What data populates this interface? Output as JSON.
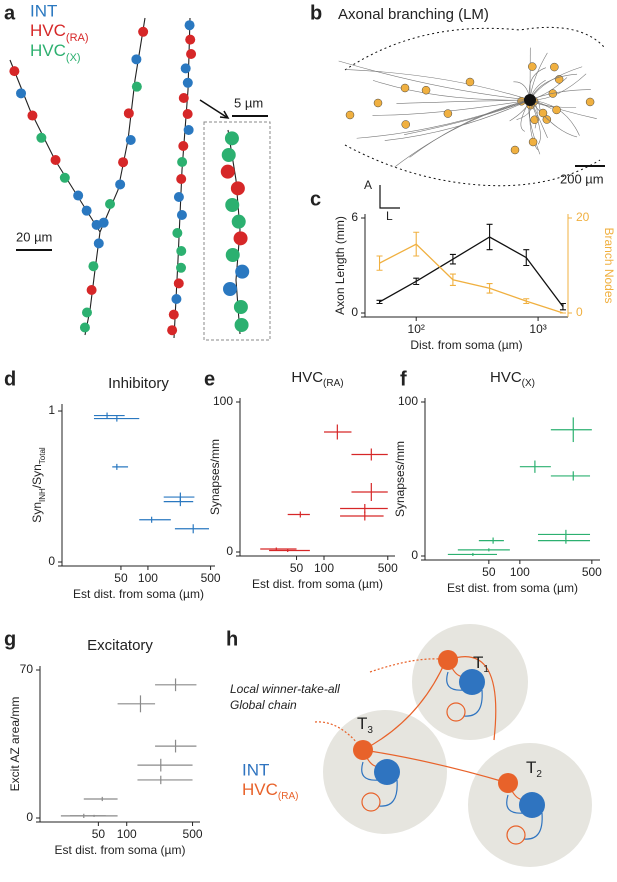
{
  "panels": {
    "a": {
      "label": "a",
      "legend": [
        "INT",
        "HVC",
        "(RA)",
        "HVC",
        "(X)"
      ],
      "scale1": "20 µm",
      "scale2": "5 µm"
    },
    "b": {
      "label": "b",
      "title": "Axonal branching (LM)",
      "scale": "200 µm",
      "axis_a": "A",
      "axis_l": "L"
    },
    "c": {
      "label": "c"
    },
    "d": {
      "label": "d"
    },
    "e": {
      "label": "e"
    },
    "f": {
      "label": "f"
    },
    "g": {
      "label": "g"
    },
    "h": {
      "label": "h",
      "line1": "Local winner-take-all",
      "line2": "Global chain",
      "node": "T",
      "nodes": [
        "1",
        "2",
        "3"
      ],
      "legend": [
        "INT",
        "HVC",
        "(RA)"
      ]
    }
  },
  "chart_data": [
    {
      "type": "line",
      "xlabel": "Dist. from soma (µm)",
      "ylabel": "Axon Length (mm)",
      "y2label": "Branch Nodes",
      "xlog": true,
      "xlim": [
        38,
        1760
      ],
      "xticks": [
        {
          "value": 100,
          "label": "10²"
        },
        {
          "value": 1000,
          "label": "10³"
        }
      ],
      "ylim": [
        0,
        6
      ],
      "yticks": [
        0,
        6
      ],
      "y2lim": [
        0,
        20
      ],
      "y2ticks": [
        0,
        20
      ],
      "series": [
        {
          "name": "Axon Length",
          "color": "#111111",
          "x": [
            50,
            100,
            200,
            400,
            800,
            1600
          ],
          "values": [
            0.7,
            2.0,
            3.4,
            4.8,
            3.5,
            0.4
          ],
          "errors": [
            0.1,
            0.2,
            0.3,
            0.8,
            0.5,
            0.2
          ]
        },
        {
          "name": "Branch Nodes",
          "color": "#f0b040",
          "axis": "y2",
          "x": [
            50,
            100,
            200,
            400,
            800,
            1600
          ],
          "values": [
            10.5,
            14.5,
            7,
            5.2,
            2.5,
            0
          ],
          "errors": [
            1.5,
            2.5,
            1.2,
            1,
            0.5,
            0
          ]
        }
      ]
    },
    {
      "type": "scatter",
      "title": "Inhibitory",
      "xlabel": "Est dist. from soma (µm)",
      "ylabel_parts": [
        "Syn",
        "INH",
        "/Syn",
        "Total"
      ],
      "xlog": true,
      "xlim": [
        11,
        560
      ],
      "xticks": [
        50,
        100,
        500
      ],
      "ylim": [
        0,
        1.02
      ],
      "yticks": [
        0,
        1
      ],
      "color": "#2a78c0",
      "x": [
        35,
        45,
        45,
        230,
        230,
        110,
        320
      ],
      "x_low": [
        25,
        25,
        40,
        150,
        150,
        80,
        200
      ],
      "x_high": [
        55,
        80,
        60,
        330,
        320,
        180,
        480
      ],
      "values": [
        0.97,
        0.95,
        0.63,
        0.43,
        0.4,
        0.28,
        0.22
      ],
      "yerr": [
        0.02,
        0.02,
        0.02,
        0.03,
        0.03,
        0.02,
        0.03
      ]
    },
    {
      "type": "scatter",
      "title": "HVC",
      "title_sub": "(RA)",
      "xlabel": "Est dist. from soma (µm)",
      "ylabel": "Synapses/mm",
      "xlog": true,
      "xlim": [
        12,
        600
      ],
      "xticks": [
        50,
        100,
        500
      ],
      "ylim": [
        0,
        100
      ],
      "yticks": [
        0,
        100
      ],
      "color": "#d62728",
      "x": [
        140,
        330,
        55,
        330,
        280,
        280,
        30,
        40
      ],
      "x_low": [
        100,
        200,
        40,
        200,
        150,
        150,
        20,
        25
      ],
      "x_high": [
        200,
        500,
        70,
        500,
        500,
        450,
        50,
        70
      ],
      "values": [
        80,
        65,
        25,
        40,
        29,
        24,
        2,
        1
      ],
      "yerr": [
        5,
        4,
        2,
        6,
        3,
        3,
        1,
        1
      ]
    },
    {
      "type": "scatter",
      "title": "HVC",
      "title_sub": "(X)",
      "xlabel": "Est dist. from soma (µm)",
      "ylabel": "Synapses/mm",
      "xlog": true,
      "xlim": [
        12,
        600
      ],
      "xticks": [
        50,
        100,
        500
      ],
      "ylim": [
        0,
        100
      ],
      "yticks": [
        0,
        100
      ],
      "color": "#2cb070",
      "x": [
        330,
        140,
        330,
        55,
        280,
        280,
        50,
        35
      ],
      "x_low": [
        200,
        100,
        200,
        40,
        150,
        150,
        25,
        20
      ],
      "x_high": [
        500,
        200,
        480,
        70,
        480,
        480,
        80,
        60
      ],
      "values": [
        82,
        58,
        52,
        10,
        14,
        10,
        4,
        1
      ],
      "yerr": [
        8,
        4,
        3,
        2,
        3,
        2,
        1,
        1
      ]
    },
    {
      "type": "scatter",
      "title": "Excitatory",
      "xlabel": "Est dist. from soma (µm)",
      "ylabel": "Excit AZ area/mm",
      "xlog": true,
      "xlim": [
        12,
        600
      ],
      "xticks": [
        50,
        100,
        500
      ],
      "ylim": [
        0,
        70
      ],
      "yticks": [
        0,
        70
      ],
      "color": "#8a8a8a",
      "x": [
        330,
        140,
        330,
        230,
        230,
        55,
        35,
        45
      ],
      "x_low": [
        200,
        80,
        200,
        130,
        130,
        35,
        20,
        25
      ],
      "x_high": [
        550,
        200,
        550,
        500,
        500,
        80,
        60,
        80
      ],
      "values": [
        63,
        54,
        34,
        25,
        18,
        9,
        1,
        1
      ],
      "yerr": [
        3,
        4,
        3,
        3,
        2,
        1,
        1,
        0.5
      ]
    }
  ]
}
